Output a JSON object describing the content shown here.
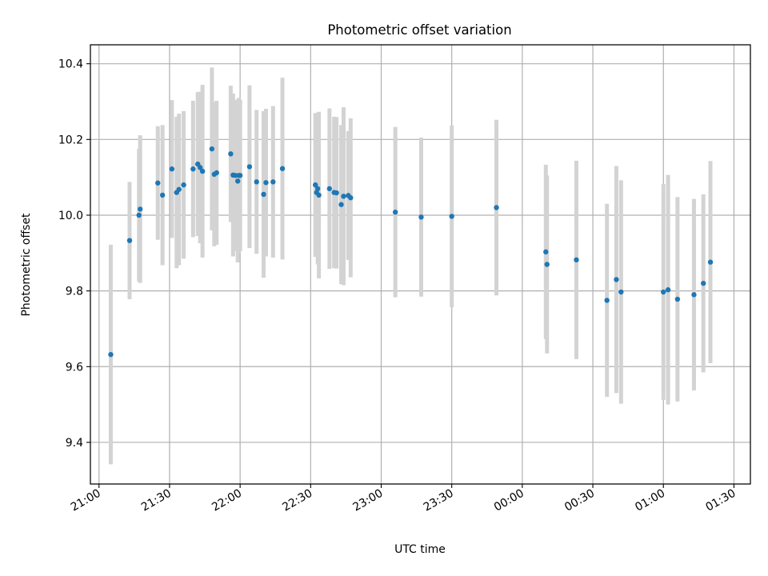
{
  "chart_data": {
    "type": "scatter",
    "title": "Photometric offset variation",
    "xlabel": "UTC time",
    "ylabel": "Photometric offset",
    "x_tick_labels": [
      "21:00",
      "21:30",
      "22:00",
      "22:30",
      "23:00",
      "23:30",
      "00:00",
      "00:30",
      "01:00",
      "01:30"
    ],
    "y_tick_labels": [
      "9.4",
      "9.6",
      "9.8",
      "10.0",
      "10.2",
      "10.4"
    ],
    "x_ticks": [
      "21:00",
      "21:30",
      "22:00",
      "22:30",
      "23:00",
      "23:30",
      "00:00",
      "00:30",
      "01:00",
      "01:30"
    ],
    "y_ticks": [
      9.4,
      9.6,
      9.8,
      10.0,
      10.2,
      10.4
    ],
    "xlim": [
      "20:56:20",
      "01:37:00"
    ],
    "ylim": [
      9.29,
      10.45
    ],
    "grid": true,
    "marker_color": "#1f77b4",
    "errorbar_color": "#d3d3d3",
    "series": [
      {
        "points": [
          {
            "t": "21:05",
            "y": 9.632,
            "err": 0.29
          },
          {
            "t": "21:13",
            "y": 9.933,
            "err": 0.155
          },
          {
            "t": "21:17",
            "y": 10.0,
            "err": 0.175
          },
          {
            "t": "21:17:30",
            "y": 10.016,
            "err": 0.195
          },
          {
            "t": "21:25",
            "y": 10.085,
            "err": 0.15
          },
          {
            "t": "21:27",
            "y": 10.053,
            "err": 0.185
          },
          {
            "t": "21:31",
            "y": 10.122,
            "err": 0.182
          },
          {
            "t": "21:33",
            "y": 10.06,
            "err": 0.2
          },
          {
            "t": "21:34",
            "y": 10.068,
            "err": 0.2
          },
          {
            "t": "21:36",
            "y": 10.08,
            "err": 0.195
          },
          {
            "t": "21:40",
            "y": 10.122,
            "err": 0.18
          },
          {
            "t": "21:42",
            "y": 10.135,
            "err": 0.19
          },
          {
            "t": "21:43",
            "y": 10.126,
            "err": 0.2
          },
          {
            "t": "21:44",
            "y": 10.116,
            "err": 0.228
          },
          {
            "t": "21:48",
            "y": 10.175,
            "err": 0.215
          },
          {
            "t": "21:49",
            "y": 10.108,
            "err": 0.19
          },
          {
            "t": "21:50",
            "y": 10.112,
            "err": 0.19
          },
          {
            "t": "21:56",
            "y": 10.162,
            "err": 0.18
          },
          {
            "t": "21:57",
            "y": 10.106,
            "err": 0.215
          },
          {
            "t": "21:58",
            "y": 10.105,
            "err": 0.2
          },
          {
            "t": "21:59",
            "y": 10.09,
            "err": 0.215
          },
          {
            "t": "21:59:30",
            "y": 10.105,
            "err": 0.205
          },
          {
            "t": "22:00",
            "y": 10.105,
            "err": 0.2
          },
          {
            "t": "22:04",
            "y": 10.128,
            "err": 0.215
          },
          {
            "t": "22:07",
            "y": 10.088,
            "err": 0.19
          },
          {
            "t": "22:10",
            "y": 10.055,
            "err": 0.22
          },
          {
            "t": "22:11",
            "y": 10.086,
            "err": 0.195
          },
          {
            "t": "22:14",
            "y": 10.088,
            "err": 0.2
          },
          {
            "t": "22:18",
            "y": 10.123,
            "err": 0.24
          },
          {
            "t": "22:32",
            "y": 10.08,
            "err": 0.19
          },
          {
            "t": "22:32:30",
            "y": 10.06,
            "err": 0.17
          },
          {
            "t": "22:33",
            "y": 10.07,
            "err": 0.2
          },
          {
            "t": "22:33:30",
            "y": 10.053,
            "err": 0.22
          },
          {
            "t": "22:38",
            "y": 10.07,
            "err": 0.212
          },
          {
            "t": "22:40",
            "y": 10.06,
            "err": 0.2
          },
          {
            "t": "22:41",
            "y": 10.059,
            "err": 0.2
          },
          {
            "t": "22:43",
            "y": 10.028,
            "err": 0.21
          },
          {
            "t": "22:44",
            "y": 10.05,
            "err": 0.235
          },
          {
            "t": "22:46",
            "y": 10.052,
            "err": 0.17
          },
          {
            "t": "22:47",
            "y": 10.046,
            "err": 0.21
          },
          {
            "t": "23:06",
            "y": 10.008,
            "err": 0.225
          },
          {
            "t": "23:17",
            "y": 9.995,
            "err": 0.21
          },
          {
            "t": "23:30",
            "y": 9.997,
            "err": 0.24
          },
          {
            "t": "23:49",
            "y": 10.02,
            "err": 0.232
          },
          {
            "t": "00:10",
            "y": 9.903,
            "err": 0.23
          },
          {
            "t": "00:10:30",
            "y": 9.87,
            "err": 0.235
          },
          {
            "t": "00:23",
            "y": 9.882,
            "err": 0.262
          },
          {
            "t": "00:36",
            "y": 9.775,
            "err": 0.255
          },
          {
            "t": "00:40",
            "y": 9.83,
            "err": 0.3
          },
          {
            "t": "00:42",
            "y": 9.797,
            "err": 0.295
          },
          {
            "t": "01:00",
            "y": 9.797,
            "err": 0.285
          },
          {
            "t": "01:02",
            "y": 9.803,
            "err": 0.303
          },
          {
            "t": "01:06",
            "y": 9.778,
            "err": 0.27
          },
          {
            "t": "01:13",
            "y": 9.79,
            "err": 0.253
          },
          {
            "t": "01:17",
            "y": 9.82,
            "err": 0.235
          },
          {
            "t": "01:20",
            "y": 9.876,
            "err": 0.267
          }
        ]
      }
    ]
  }
}
